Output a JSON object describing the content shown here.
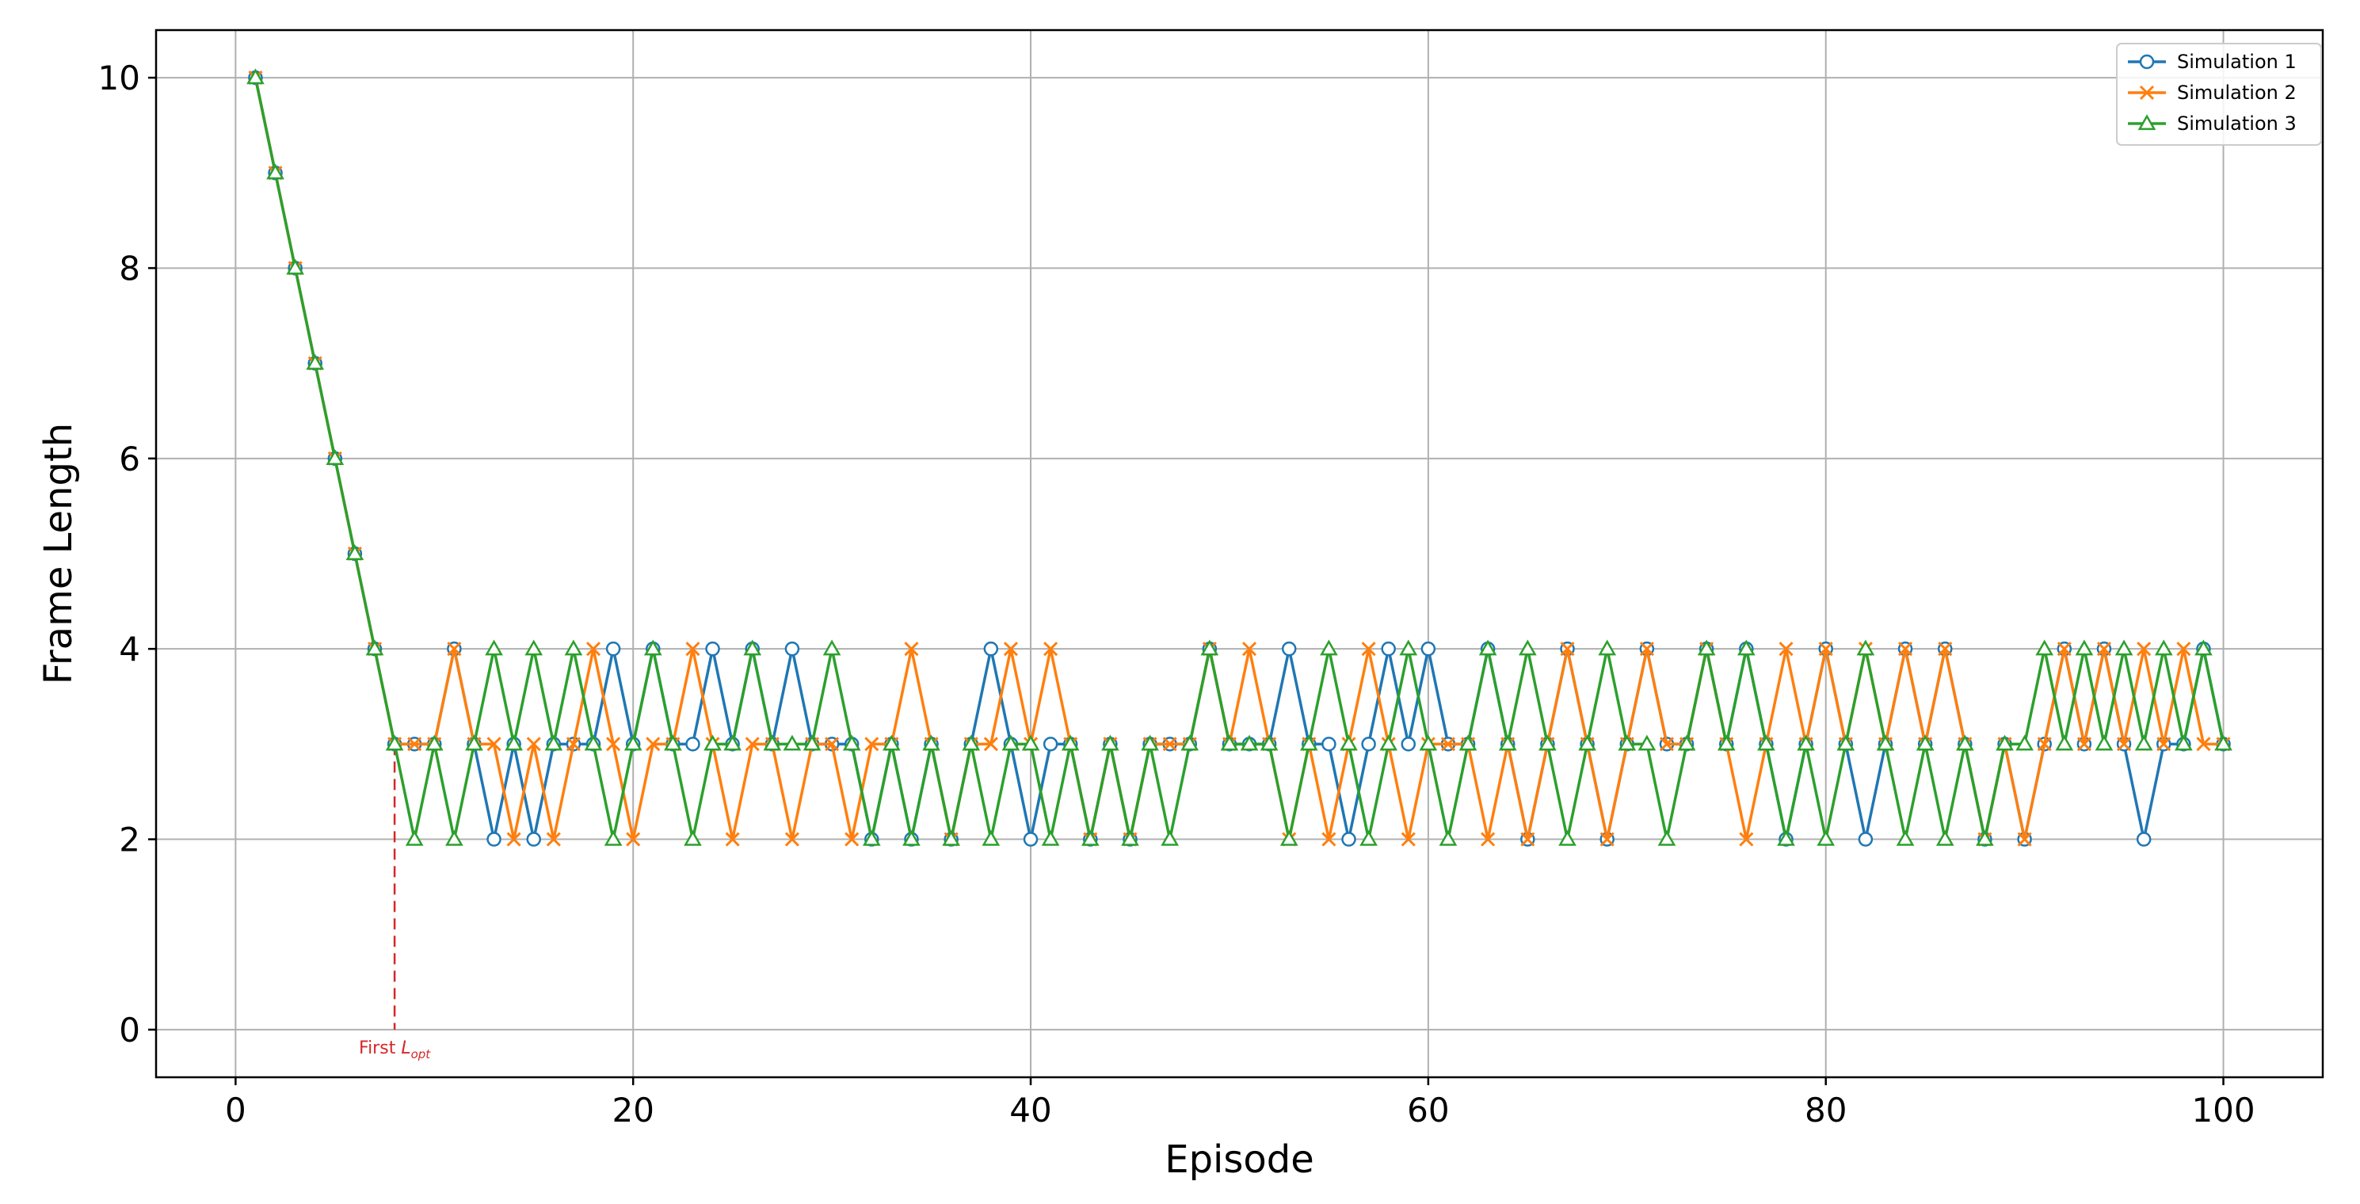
{
  "chart_data": {
    "type": "line",
    "xlabel": "Episode",
    "ylabel": "Frame Length",
    "xlim": [
      -4,
      105
    ],
    "ylim": [
      -0.5,
      10.5
    ],
    "xticks": [
      0,
      20,
      40,
      60,
      80,
      100
    ],
    "yticks": [
      0,
      2,
      4,
      6,
      8,
      10
    ],
    "grid": true,
    "legend_position": "top-right",
    "x": [
      1,
      2,
      3,
      4,
      5,
      6,
      7,
      8,
      9,
      10,
      11,
      12,
      13,
      14,
      15,
      16,
      17,
      18,
      19,
      20,
      21,
      22,
      23,
      24,
      25,
      26,
      27,
      28,
      29,
      30,
      31,
      32,
      33,
      34,
      35,
      36,
      37,
      38,
      39,
      40,
      41,
      42,
      43,
      44,
      45,
      46,
      47,
      48,
      49,
      50,
      51,
      52,
      53,
      54,
      55,
      56,
      57,
      58,
      59,
      60,
      61,
      62,
      63,
      64,
      65,
      66,
      67,
      68,
      69,
      70,
      71,
      72,
      73,
      74,
      75,
      76,
      77,
      78,
      79,
      80,
      81,
      82,
      83,
      84,
      85,
      86,
      87,
      88,
      89,
      90,
      91,
      92,
      93,
      94,
      95,
      96,
      97,
      98,
      99,
      100
    ],
    "series": [
      {
        "name": "Simulation 1",
        "color": "#1f77b4",
        "marker": "circle",
        "values": [
          10,
          9,
          8,
          7,
          6,
          5,
          4,
          3,
          3,
          3,
          4,
          3,
          2,
          3,
          2,
          3,
          3,
          3,
          4,
          3,
          4,
          3,
          3,
          4,
          3,
          4,
          3,
          4,
          3,
          3,
          3,
          2,
          3,
          2,
          3,
          2,
          3,
          4,
          3,
          2,
          3,
          3,
          2,
          3,
          2,
          3,
          3,
          3,
          4,
          3,
          3,
          3,
          4,
          3,
          3,
          2,
          3,
          4,
          3,
          4,
          3,
          3,
          4,
          3,
          2,
          3,
          4,
          3,
          2,
          3,
          4,
          3,
          3,
          4,
          3,
          4,
          3,
          2,
          3,
          4,
          3,
          2,
          3,
          4,
          3,
          4,
          3,
          2,
          3,
          2,
          3,
          4,
          3,
          4,
          3,
          2,
          3,
          3,
          4,
          3
        ]
      },
      {
        "name": "Simulation 2",
        "color": "#ff7f0e",
        "marker": "x",
        "values": [
          10,
          9,
          8,
          7,
          6,
          5,
          4,
          3,
          3,
          3,
          4,
          3,
          3,
          2,
          3,
          2,
          3,
          4,
          3,
          2,
          3,
          3,
          4,
          3,
          2,
          3,
          3,
          2,
          3,
          3,
          2,
          3,
          3,
          4,
          3,
          2,
          3,
          3,
          4,
          3,
          4,
          3,
          2,
          3,
          2,
          3,
          3,
          3,
          4,
          3,
          4,
          3,
          2,
          3,
          2,
          3,
          4,
          3,
          2,
          3,
          3,
          3,
          2,
          3,
          2,
          3,
          4,
          3,
          2,
          3,
          4,
          3,
          3,
          4,
          3,
          2,
          3,
          4,
          3,
          4,
          3,
          4,
          3,
          4,
          3,
          4,
          3,
          2,
          3,
          2,
          3,
          4,
          3,
          4,
          3,
          4,
          3,
          4,
          3,
          3
        ]
      },
      {
        "name": "Simulation 3",
        "color": "#2ca02c",
        "marker": "triangle",
        "values": [
          10,
          9,
          8,
          7,
          6,
          5,
          4,
          3,
          2,
          3,
          2,
          3,
          4,
          3,
          4,
          3,
          4,
          3,
          2,
          3,
          4,
          3,
          2,
          3,
          3,
          4,
          3,
          3,
          3,
          4,
          3,
          2,
          3,
          2,
          3,
          2,
          3,
          2,
          3,
          3,
          2,
          3,
          2,
          3,
          2,
          3,
          2,
          3,
          4,
          3,
          3,
          3,
          2,
          3,
          4,
          3,
          2,
          3,
          4,
          3,
          2,
          3,
          4,
          3,
          4,
          3,
          2,
          3,
          4,
          3,
          3,
          2,
          3,
          4,
          3,
          4,
          3,
          2,
          3,
          2,
          3,
          4,
          3,
          2,
          3,
          2,
          3,
          2,
          3,
          3,
          4,
          3,
          4,
          3,
          4,
          3,
          4,
          3,
          4,
          3
        ]
      }
    ],
    "annotation": {
      "x": 8,
      "y_top": 3,
      "y_bottom": 0,
      "style": "dashed",
      "color": "#d62728",
      "text_prefix": "First ",
      "text_main": "L",
      "text_sub": "opt"
    }
  }
}
